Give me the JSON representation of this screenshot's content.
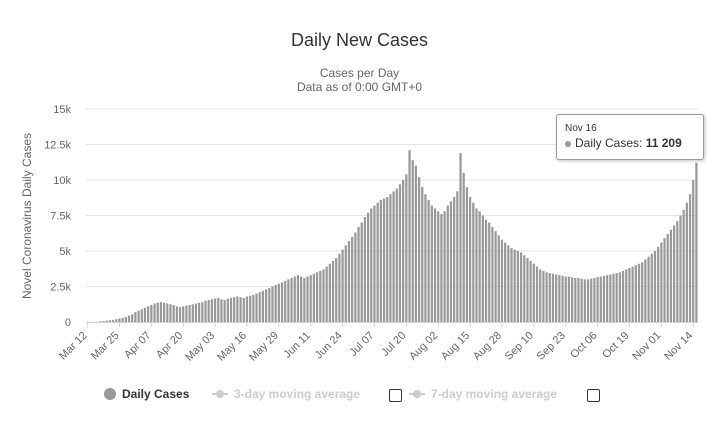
{
  "chart_data": {
    "type": "bar",
    "title": "Daily New Cases",
    "subtitle": "Cases per Day",
    "subtitle2": "Data as of 0:00 GMT+0",
    "ylabel": "Novel Coronavirus Daily Cases",
    "xlabel": "",
    "ylim": [
      0,
      15000
    ],
    "yticks": [
      0,
      2500,
      5000,
      7500,
      10000,
      12500,
      15000
    ],
    "ytick_labels": [
      "0",
      "2.5k",
      "5k",
      "7.5k",
      "10k",
      "12.5k",
      "15k"
    ],
    "xtick_labels": [
      "Mar 12",
      "Mar 25",
      "Apr 07",
      "Apr 20",
      "May 03",
      "May 16",
      "May 29",
      "Jun 11",
      "Jun 24",
      "Jul 07",
      "Jul 20",
      "Aug 02",
      "Aug 15",
      "Aug 28",
      "Sep 10",
      "Sep 23",
      "Oct 06",
      "Oct 19",
      "Nov 01",
      "Nov 14"
    ],
    "grid": true,
    "legend_position": "bottom",
    "series": [
      {
        "name": "Daily Cases",
        "color": "#999999",
        "values": [
          0,
          0,
          0,
          0,
          50,
          60,
          100,
          120,
          150,
          200,
          250,
          300,
          350,
          450,
          550,
          700,
          800,
          900,
          1000,
          1100,
          1200,
          1300,
          1350,
          1400,
          1350,
          1300,
          1250,
          1200,
          1100,
          1050,
          1100,
          1150,
          1200,
          1250,
          1300,
          1350,
          1400,
          1500,
          1550,
          1600,
          1650,
          1700,
          1600,
          1550,
          1650,
          1700,
          1750,
          1800,
          1750,
          1700,
          1800,
          1850,
          1900,
          2000,
          2100,
          2200,
          2300,
          2400,
          2500,
          2600,
          2700,
          2800,
          2900,
          3000,
          3100,
          3200,
          3300,
          3200,
          3100,
          3200,
          3300,
          3400,
          3500,
          3600,
          3700,
          3900,
          4100,
          4300,
          4500,
          4800,
          5100,
          5400,
          5700,
          6000,
          6300,
          6700,
          7000,
          7400,
          7700,
          8000,
          8200,
          8400,
          8600,
          8700,
          8800,
          9000,
          9200,
          9400,
          9700,
          10000,
          10400,
          12100,
          11400,
          11000,
          10200,
          9500,
          9000,
          8600,
          8200,
          8000,
          7800,
          7600,
          7800,
          8200,
          8500,
          8800,
          9200,
          11900,
          10500,
          9500,
          8800,
          8400,
          8000,
          7800,
          7500,
          7200,
          7000,
          6700,
          6400,
          6100,
          5800,
          5600,
          5400,
          5200,
          5100,
          5000,
          4900,
          4700,
          4500,
          4300,
          4100,
          3900,
          3700,
          3600,
          3500,
          3450,
          3400,
          3350,
          3300,
          3250,
          3200,
          3200,
          3150,
          3100,
          3100,
          3050,
          3000,
          3000,
          3050,
          3100,
          3150,
          3200,
          3250,
          3300,
          3350,
          3400,
          3450,
          3500,
          3600,
          3700,
          3800,
          3900,
          4000,
          4100,
          4200,
          4400,
          4600,
          4800,
          5000,
          5300,
          5600,
          5900,
          6200,
          6500,
          6800,
          7100,
          7500,
          7900,
          8400,
          9000,
          10000,
          11209
        ]
      },
      {
        "name": "3-day moving average",
        "color": "#cccccc"
      },
      {
        "name": "7-day moving average",
        "color": "#cccccc"
      }
    ],
    "tooltip": {
      "date": "Nov 16",
      "label": "Daily Cases:",
      "value": "11 209"
    }
  }
}
